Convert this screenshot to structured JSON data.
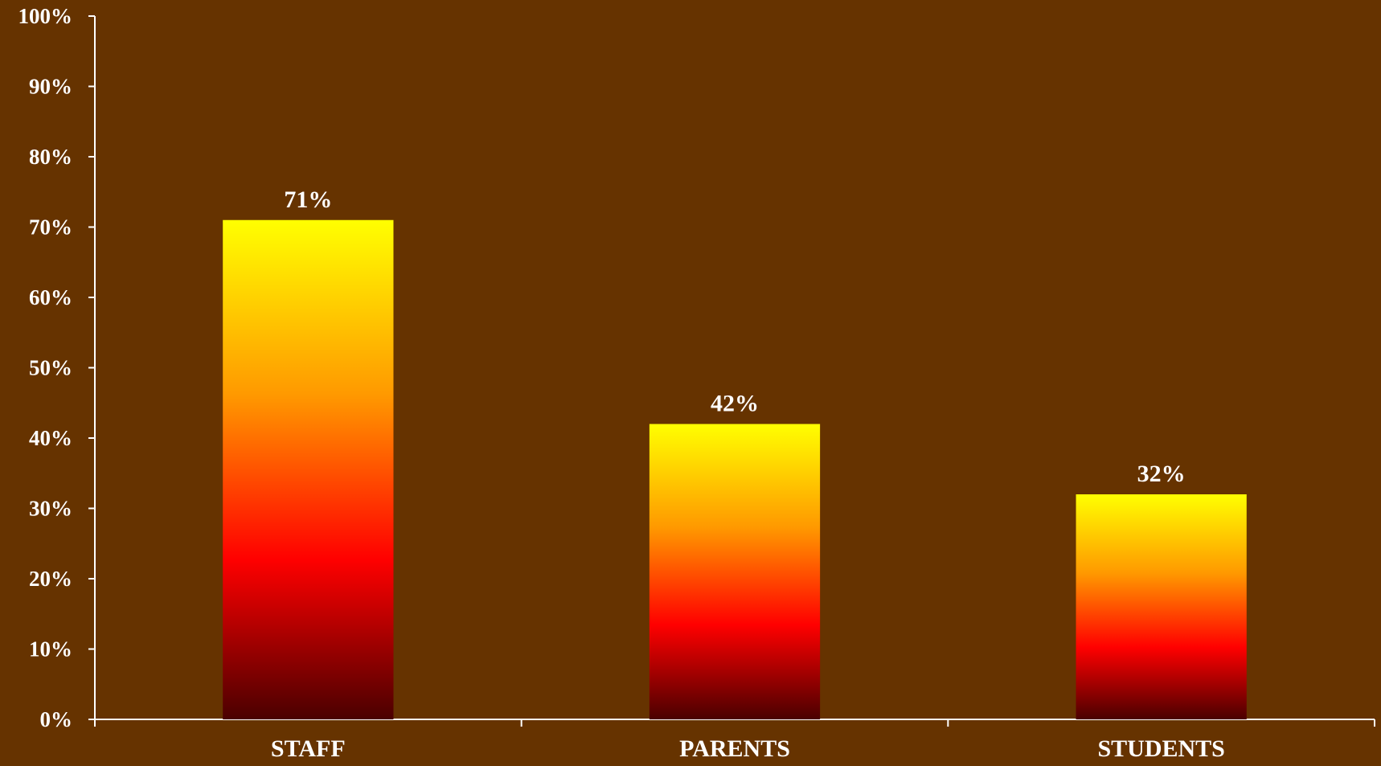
{
  "chart_data": {
    "type": "bar",
    "categories": [
      "STAFF",
      "PARENTS",
      "STUDENTS"
    ],
    "values": [
      71,
      42,
      32
    ],
    "data_labels": [
      "71%",
      "42%",
      "32%"
    ],
    "ylim": [
      0,
      100
    ],
    "yticks": [
      0,
      10,
      20,
      30,
      40,
      50,
      60,
      70,
      80,
      90,
      100
    ],
    "ytick_labels": [
      "0%",
      "10%",
      "20%",
      "30%",
      "40%",
      "50%",
      "60%",
      "70%",
      "80%",
      "90%",
      "100%"
    ],
    "grid": false,
    "legend": "none",
    "title": "",
    "xlabel": "",
    "ylabel": ""
  },
  "colors": {
    "background": "#663300",
    "axis": "#ffffff",
    "text": "#ffffff",
    "bar_gradient": [
      "#ffff00",
      "#ff9900",
      "#ff0000",
      "#4a0000"
    ]
  }
}
